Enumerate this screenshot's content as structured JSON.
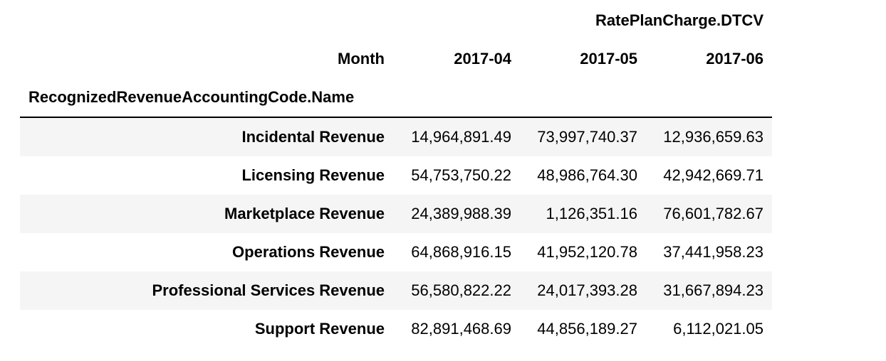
{
  "table": {
    "value_column_group": "RatePlanCharge.DTCV",
    "column_index_name": "Month",
    "row_index_name": "RecognizedRevenueAccountingCode.Name",
    "months": [
      "2017-04",
      "2017-05",
      "2017-06"
    ],
    "rows": [
      {
        "name": "Incidental Revenue",
        "values": [
          "14,964,891.49",
          "73,997,740.37",
          "12,936,659.63"
        ]
      },
      {
        "name": "Licensing Revenue",
        "values": [
          "54,753,750.22",
          "48,986,764.30",
          "42,942,669.71"
        ]
      },
      {
        "name": "Marketplace Revenue",
        "values": [
          "24,389,988.39",
          "1,126,351.16",
          "76,601,782.67"
        ]
      },
      {
        "name": "Operations Revenue",
        "values": [
          "64,868,916.15",
          "41,952,120.78",
          "37,441,958.23"
        ]
      },
      {
        "name": "Professional Services Revenue",
        "values": [
          "56,580,822.22",
          "24,017,393.28",
          "31,667,894.23"
        ]
      },
      {
        "name": "Support Revenue",
        "values": [
          "82,891,468.69",
          "44,856,189.27",
          "6,112,021.05"
        ]
      }
    ]
  }
}
